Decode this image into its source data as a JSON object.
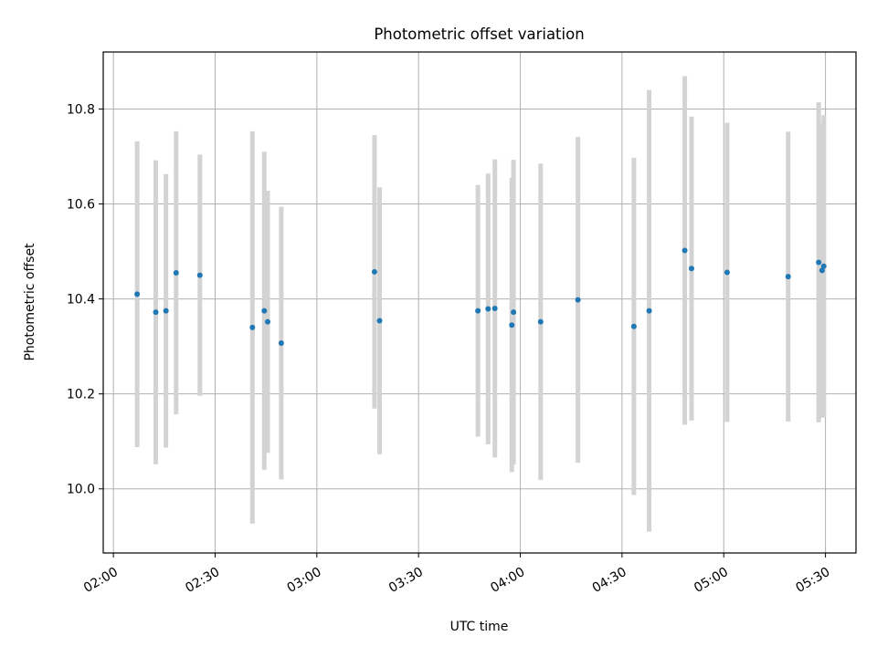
{
  "chart_data": {
    "type": "scatter",
    "title": "Photometric offset variation",
    "xlabel": "UTC time",
    "ylabel": "Photometric offset",
    "x_tick_labels": [
      "02:00",
      "02:30",
      "03:00",
      "03:30",
      "04:00",
      "04:30",
      "05:00",
      "05:30"
    ],
    "x_ticks": [
      "02:00",
      "02:30",
      "03:00",
      "03:30",
      "04:00",
      "04:30",
      "05:00",
      "05:30"
    ],
    "y_ticks": [
      10.0,
      10.2,
      10.4,
      10.6,
      10.8
    ],
    "y_tick_labels": [
      "10.0",
      "10.2",
      "10.4",
      "10.6",
      "10.8"
    ],
    "xlim": [
      "01:57",
      "05:39"
    ],
    "ylim": [
      9.865,
      10.92
    ],
    "grid": true,
    "marker_color": "#1f77b4",
    "errorbar_color": "#d3d3d3",
    "points": [
      {
        "x": "02:07",
        "y": 10.41,
        "ylow": 10.088,
        "yhigh": 10.732
      },
      {
        "x": "02:12:30",
        "y": 10.372,
        "ylow": 10.052,
        "yhigh": 10.692
      },
      {
        "x": "02:15:30",
        "y": 10.375,
        "ylow": 10.087,
        "yhigh": 10.663
      },
      {
        "x": "02:18:30",
        "y": 10.455,
        "ylow": 10.157,
        "yhigh": 10.753
      },
      {
        "x": "02:25:30",
        "y": 10.45,
        "ylow": 10.196,
        "yhigh": 10.704
      },
      {
        "x": "02:41",
        "y": 10.34,
        "ylow": 9.927,
        "yhigh": 10.753
      },
      {
        "x": "02:44:30",
        "y": 10.375,
        "ylow": 10.04,
        "yhigh": 10.71
      },
      {
        "x": "02:45:30",
        "y": 10.352,
        "ylow": 10.076,
        "yhigh": 10.628
      },
      {
        "x": "02:49:30",
        "y": 10.307,
        "ylow": 10.02,
        "yhigh": 10.594
      },
      {
        "x": "03:17",
        "y": 10.457,
        "ylow": 10.169,
        "yhigh": 10.745
      },
      {
        "x": "03:18:30",
        "y": 10.354,
        "ylow": 10.073,
        "yhigh": 10.635
      },
      {
        "x": "03:47:30",
        "y": 10.375,
        "ylow": 10.11,
        "yhigh": 10.64
      },
      {
        "x": "03:50:30",
        "y": 10.379,
        "ylow": 10.094,
        "yhigh": 10.664
      },
      {
        "x": "03:52:30",
        "y": 10.38,
        "ylow": 10.066,
        "yhigh": 10.694
      },
      {
        "x": "03:57:30",
        "y": 10.345,
        "ylow": 10.035,
        "yhigh": 10.655
      },
      {
        "x": "03:58",
        "y": 10.372,
        "ylow": 10.051,
        "yhigh": 10.693
      },
      {
        "x": "04:06",
        "y": 10.352,
        "ylow": 10.019,
        "yhigh": 10.685
      },
      {
        "x": "04:17",
        "y": 10.398,
        "ylow": 10.055,
        "yhigh": 10.741
      },
      {
        "x": "04:33:30",
        "y": 10.342,
        "ylow": 9.987,
        "yhigh": 10.697
      },
      {
        "x": "04:38",
        "y": 10.375,
        "ylow": 9.91,
        "yhigh": 10.84
      },
      {
        "x": "04:48:30",
        "y": 10.502,
        "ylow": 10.135,
        "yhigh": 10.869
      },
      {
        "x": "04:50:30",
        "y": 10.464,
        "ylow": 10.144,
        "yhigh": 10.784
      },
      {
        "x": "05:01",
        "y": 10.456,
        "ylow": 10.141,
        "yhigh": 10.771
      },
      {
        "x": "05:19",
        "y": 10.447,
        "ylow": 10.142,
        "yhigh": 10.752
      },
      {
        "x": "05:28",
        "y": 10.477,
        "ylow": 10.14,
        "yhigh": 10.814
      },
      {
        "x": "05:29",
        "y": 10.46,
        "ylow": 10.15,
        "yhigh": 10.77
      },
      {
        "x": "05:29:30",
        "y": 10.469,
        "ylow": 10.151,
        "yhigh": 10.787
      }
    ]
  }
}
